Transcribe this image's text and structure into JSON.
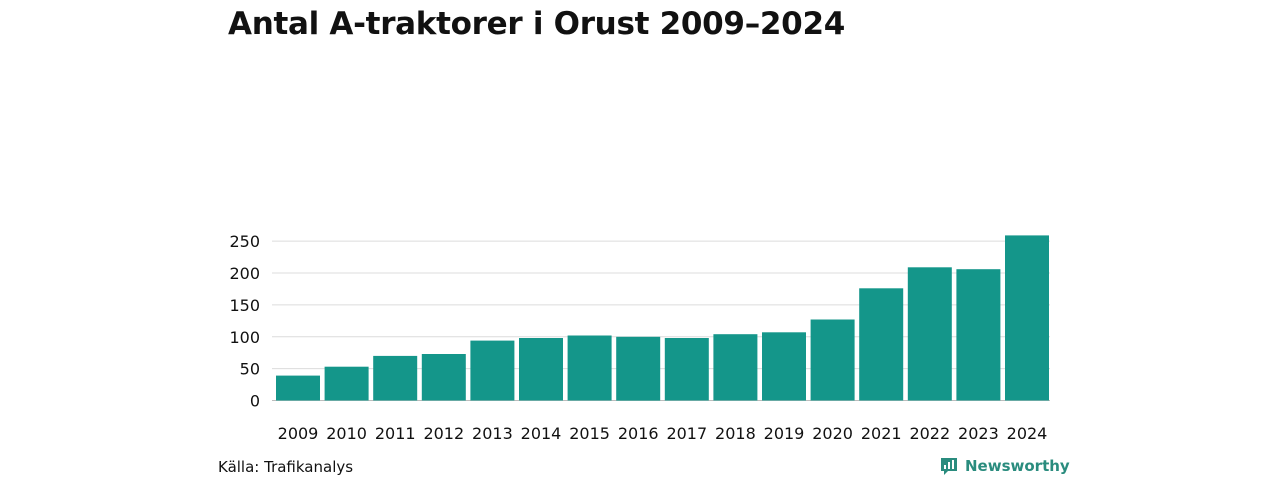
{
  "chart_data": {
    "type": "bar",
    "title": "Antal A-traktorer i Orust 2009–2024",
    "xlabel": "",
    "ylabel": "",
    "categories": [
      "2009",
      "2010",
      "2011",
      "2012",
      "2013",
      "2014",
      "2015",
      "2016",
      "2017",
      "2018",
      "2019",
      "2020",
      "2021",
      "2022",
      "2023",
      "2024"
    ],
    "values": [
      39,
      53,
      70,
      73,
      94,
      98,
      102,
      100,
      98,
      104,
      107,
      127,
      176,
      209,
      206,
      259
    ],
    "ylim": [
      0,
      260
    ],
    "yticks": [
      0,
      50,
      100,
      150,
      200,
      250
    ],
    "grid": true,
    "legend": "none",
    "bar_color": "#14968a"
  },
  "footer": {
    "source": "Källa: Trafikanalys",
    "brand": "Newsworthy",
    "brand_icon": "bar-chart-logo-icon",
    "brand_color": "#2a8c7e"
  }
}
